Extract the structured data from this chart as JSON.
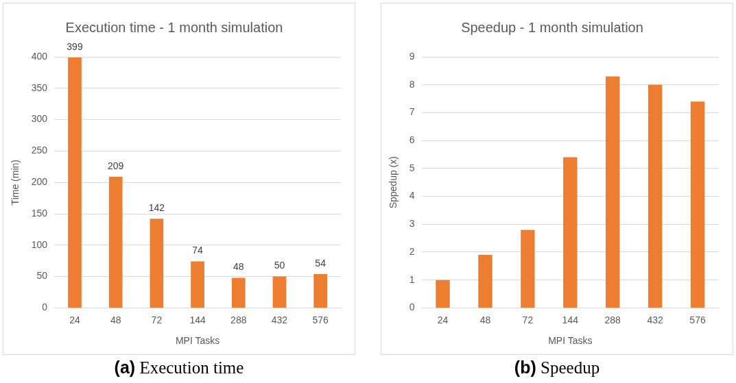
{
  "chart_data": [
    {
      "type": "bar",
      "title": "Execution time - 1 month simulation",
      "xlabel": "MPI Tasks",
      "ylabel": "Time (min)",
      "categories": [
        "24",
        "48",
        "72",
        "144",
        "288",
        "432",
        "576"
      ],
      "series": [
        {
          "color": "#ed7d31",
          "values": [
            399,
            209,
            142,
            74,
            48,
            50,
            54
          ]
        }
      ],
      "data_labels": true,
      "ylim": [
        0,
        400
      ],
      "yticks": [
        0,
        50,
        100,
        150,
        200,
        250,
        300,
        350,
        400
      ],
      "grid": "y",
      "legend": false,
      "annotations": [
        "(a) Execution time"
      ]
    },
    {
      "type": "bar",
      "title": "Speedup - 1 month simulation",
      "xlabel": "MPI Tasks",
      "ylabel": "Sppedup (x)",
      "categories": [
        "24",
        "48",
        "72",
        "144",
        "288",
        "432",
        "576"
      ],
      "series": [
        {
          "color": "#ed7d31",
          "values": [
            1.0,
            1.9,
            2.8,
            5.4,
            8.3,
            8.0,
            7.4
          ]
        }
      ],
      "ylim": [
        0,
        9
      ],
      "yticks": [
        0,
        1,
        2,
        3,
        4,
        5,
        6,
        7,
        8,
        9
      ],
      "grid": "y",
      "legend": false,
      "annotations": [
        "(b) Speedup"
      ]
    }
  ]
}
